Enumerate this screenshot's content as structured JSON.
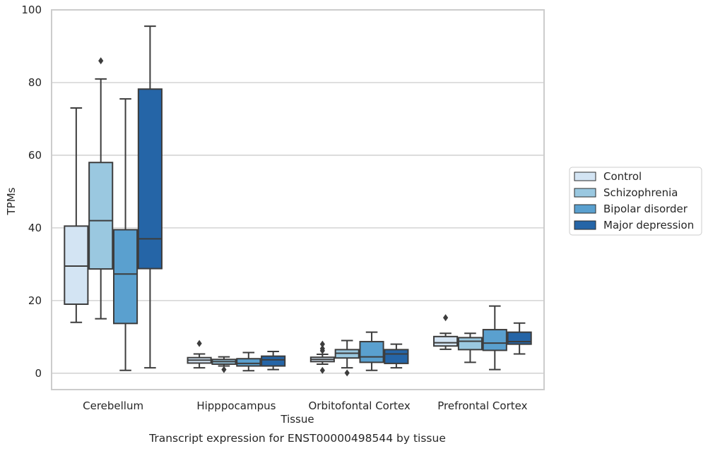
{
  "chart_data": {
    "type": "box",
    "caption": "Transcript expression for ENST00000498544 by tissue",
    "xlabel": "Tissue",
    "ylabel": "TPMs",
    "ylim": [
      -4.5,
      100
    ],
    "yticks": [
      0,
      20,
      40,
      60,
      80,
      100
    ],
    "grid": "horizontal",
    "legend_position": "right",
    "categories": [
      "Cerebellum",
      "Hipppocampus",
      "Orbitofontal Cortex",
      "Prefrontal Cortex"
    ],
    "series": [
      {
        "name": "Control",
        "color": "#d3e4f3",
        "boxes": [
          {
            "whisker_low": 14,
            "q1": 19,
            "median": 29.5,
            "q3": 40.5,
            "whisker_high": 73,
            "outliers": []
          },
          {
            "whisker_low": 1.5,
            "q1": 2.8,
            "median": 3.6,
            "q3": 4.3,
            "whisker_high": 5.3,
            "outliers": [
              8.2
            ]
          },
          {
            "whisker_low": 2.5,
            "q1": 3.2,
            "median": 3.8,
            "q3": 4.4,
            "whisker_high": 5.2,
            "outliers": [
              0.8,
              6.2,
              6.8,
              8.0
            ]
          },
          {
            "whisker_low": 6.6,
            "q1": 7.5,
            "median": 8.4,
            "q3": 10.1,
            "whisker_high": 11.0,
            "outliers": [
              15.3
            ]
          }
        ]
      },
      {
        "name": "Schizophrenia",
        "color": "#9ac8e0",
        "boxes": [
          {
            "whisker_low": 15,
            "q1": 28.7,
            "median": 42,
            "q3": 58,
            "whisker_high": 81,
            "outliers": [
              86
            ]
          },
          {
            "whisker_low": 2.0,
            "q1": 2.5,
            "median": 3.2,
            "q3": 3.8,
            "whisker_high": 4.5,
            "outliers": [
              1.0
            ]
          },
          {
            "whisker_low": 1.5,
            "q1": 4.2,
            "median": 5.5,
            "q3": 6.5,
            "whisker_high": 9.0,
            "outliers": [
              0.1
            ]
          },
          {
            "whisker_low": 3.0,
            "q1": 6.5,
            "median": 8.8,
            "q3": 9.8,
            "whisker_high": 11.0,
            "outliers": []
          }
        ]
      },
      {
        "name": "Bipolar disorder",
        "color": "#5aa0cf",
        "boxes": [
          {
            "whisker_low": 0.8,
            "q1": 13.7,
            "median": 27.3,
            "q3": 39.5,
            "whisker_high": 75.5,
            "outliers": []
          },
          {
            "whisker_low": 0.7,
            "q1": 2.0,
            "median": 2.7,
            "q3": 4.0,
            "whisker_high": 5.7,
            "outliers": []
          },
          {
            "whisker_low": 0.8,
            "q1": 3.0,
            "median": 4.5,
            "q3": 8.7,
            "whisker_high": 11.3,
            "outliers": []
          },
          {
            "whisker_low": 1.0,
            "q1": 6.3,
            "median": 8.3,
            "q3": 12.0,
            "whisker_high": 18.5,
            "outliers": []
          }
        ]
      },
      {
        "name": "Major depression",
        "color": "#2565a7",
        "boxes": [
          {
            "whisker_low": 1.5,
            "q1": 28.8,
            "median": 37,
            "q3": 78.2,
            "whisker_high": 95.5,
            "outliers": []
          },
          {
            "whisker_low": 1.0,
            "q1": 2.0,
            "median": 3.7,
            "q3": 4.7,
            "whisker_high": 6.0,
            "outliers": []
          },
          {
            "whisker_low": 1.5,
            "q1": 2.7,
            "median": 5.3,
            "q3": 6.5,
            "whisker_high": 8.0,
            "outliers": []
          },
          {
            "whisker_low": 5.3,
            "q1": 8.0,
            "median": 8.7,
            "q3": 11.3,
            "whisker_high": 13.8,
            "outliers": []
          }
        ]
      }
    ]
  }
}
